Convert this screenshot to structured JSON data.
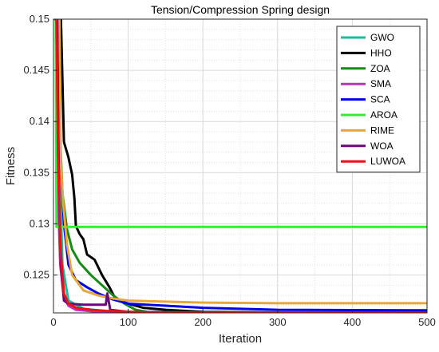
{
  "chart_data": {
    "type": "line",
    "title": "Tension/Compression Spring design",
    "xlabel": "Iteration",
    "ylabel": "Fitness",
    "xlim": [
      0,
      500
    ],
    "ylim": [
      0.1213,
      0.15
    ],
    "x_ticks": [
      0,
      100,
      200,
      300,
      400,
      500
    ],
    "y_ticks": [
      0.125,
      0.13,
      0.135,
      0.14,
      0.145,
      0.15
    ],
    "x_tick_labels": [
      "0",
      "100",
      "200",
      "300",
      "400",
      "500"
    ],
    "y_tick_labels": [
      "0.125",
      "0.13",
      "0.135",
      "0.14",
      "0.145",
      "0.15"
    ],
    "grid": true,
    "legend_position": "top-right",
    "series": [
      {
        "name": "GWO",
        "color": "#1ABC9C",
        "points": [
          [
            1,
            0.15
          ],
          [
            5,
            0.15
          ],
          [
            8,
            0.137
          ],
          [
            12,
            0.126
          ],
          [
            20,
            0.1225
          ],
          [
            40,
            0.1217
          ],
          [
            80,
            0.1214
          ],
          [
            150,
            0.12132
          ],
          [
            500,
            0.1213
          ]
        ]
      },
      {
        "name": "HHO",
        "color": "#000000",
        "points": [
          [
            1,
            0.15
          ],
          [
            10,
            0.15
          ],
          [
            14,
            0.138
          ],
          [
            20,
            0.1365
          ],
          [
            25,
            0.1348
          ],
          [
            28,
            0.1325
          ],
          [
            30,
            0.1298
          ],
          [
            35,
            0.129
          ],
          [
            40,
            0.1285
          ],
          [
            45,
            0.127
          ],
          [
            55,
            0.1265
          ],
          [
            65,
            0.125
          ],
          [
            75,
            0.1238
          ],
          [
            82,
            0.1228
          ],
          [
            90,
            0.1225
          ],
          [
            100,
            0.1222
          ],
          [
            120,
            0.1218
          ],
          [
            150,
            0.1216
          ],
          [
            200,
            0.1214
          ],
          [
            300,
            0.12135
          ],
          [
            500,
            0.12133
          ]
        ]
      },
      {
        "name": "ZOA",
        "color": "#168C16",
        "points": [
          [
            1,
            0.15
          ],
          [
            5,
            0.15
          ],
          [
            8,
            0.14
          ],
          [
            12,
            0.133
          ],
          [
            18,
            0.1295
          ],
          [
            25,
            0.1275
          ],
          [
            35,
            0.1262
          ],
          [
            50,
            0.125
          ],
          [
            65,
            0.124
          ],
          [
            80,
            0.123
          ],
          [
            95,
            0.1222
          ],
          [
            110,
            0.1216
          ],
          [
            125,
            0.1214
          ],
          [
            200,
            0.12134
          ],
          [
            500,
            0.12132
          ]
        ]
      },
      {
        "name": "SMA",
        "color": "#C030C0",
        "points": [
          [
            1,
            0.15
          ],
          [
            4,
            0.15
          ],
          [
            6,
            0.133
          ],
          [
            9,
            0.126
          ],
          [
            14,
            0.1228
          ],
          [
            20,
            0.122
          ],
          [
            30,
            0.1216
          ],
          [
            60,
            0.1214
          ],
          [
            100,
            0.12132
          ],
          [
            500,
            0.1213
          ]
        ]
      },
      {
        "name": "SCA",
        "color": "#0000EE",
        "points": [
          [
            1,
            0.15
          ],
          [
            6,
            0.15
          ],
          [
            9,
            0.137
          ],
          [
            14,
            0.13
          ],
          [
            20,
            0.126
          ],
          [
            30,
            0.1245
          ],
          [
            45,
            0.1238
          ],
          [
            60,
            0.1232
          ],
          [
            80,
            0.1226
          ],
          [
            100,
            0.1222
          ],
          [
            150,
            0.122
          ],
          [
            200,
            0.1218
          ],
          [
            250,
            0.1217
          ],
          [
            300,
            0.1216
          ],
          [
            400,
            0.12157
          ],
          [
            500,
            0.12155
          ]
        ]
      },
      {
        "name": "AROA",
        "color": "#33EE33",
        "points": [
          [
            1,
            0.15
          ],
          [
            3,
            0.15
          ],
          [
            4,
            0.1297
          ],
          [
            500,
            0.1297
          ]
        ]
      },
      {
        "name": "RIME",
        "color": "#E8A838",
        "points": [
          [
            1,
            0.15
          ],
          [
            8,
            0.15
          ],
          [
            10,
            0.1358
          ],
          [
            13,
            0.132
          ],
          [
            18,
            0.128
          ],
          [
            25,
            0.125
          ],
          [
            40,
            0.1235
          ],
          [
            60,
            0.123
          ],
          [
            80,
            0.1227
          ],
          [
            100,
            0.1225
          ],
          [
            150,
            0.1224
          ],
          [
            200,
            0.1223
          ],
          [
            300,
            0.12225
          ],
          [
            500,
            0.12225
          ]
        ]
      },
      {
        "name": "WOA",
        "color": "#6A0A7A",
        "points": [
          [
            1,
            0.15
          ],
          [
            5,
            0.15
          ],
          [
            7,
            0.134
          ],
          [
            10,
            0.126
          ],
          [
            14,
            0.1225
          ],
          [
            20,
            0.1222
          ],
          [
            40,
            0.1221
          ],
          [
            70,
            0.1221
          ],
          [
            72,
            0.1232
          ],
          [
            76,
            0.1216
          ],
          [
            100,
            0.1214
          ],
          [
            200,
            0.12132
          ],
          [
            500,
            0.1213
          ]
        ]
      },
      {
        "name": "LUWOA",
        "color": "#EE1111",
        "points": [
          [
            1,
            0.15
          ],
          [
            4,
            0.15
          ],
          [
            6,
            0.137
          ],
          [
            9,
            0.128
          ],
          [
            14,
            0.1232
          ],
          [
            20,
            0.1222
          ],
          [
            30,
            0.1218
          ],
          [
            50,
            0.1216
          ],
          [
            70,
            0.1215
          ],
          [
            90,
            0.12145
          ],
          [
            120,
            0.12135
          ],
          [
            200,
            0.12132
          ],
          [
            500,
            0.1213
          ]
        ]
      }
    ]
  }
}
